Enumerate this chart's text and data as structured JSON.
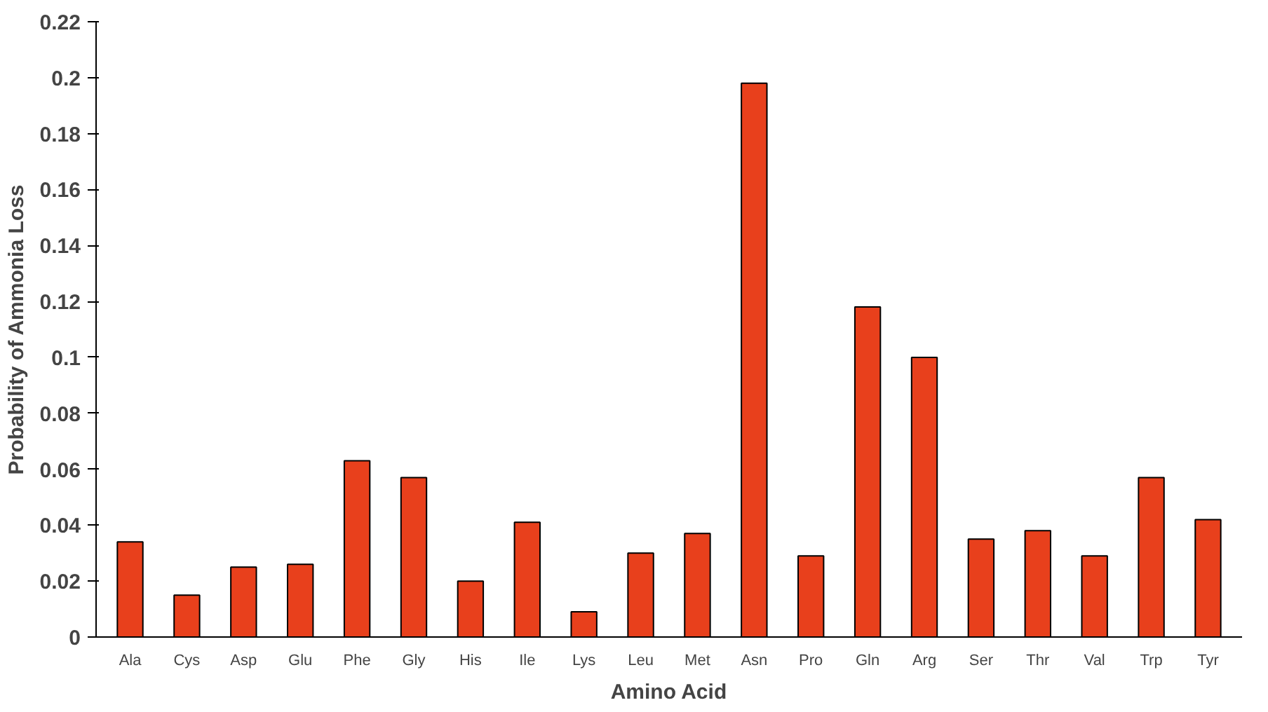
{
  "chart_data": {
    "type": "bar",
    "xlabel": "Amino Acid",
    "ylabel": "Probability of Ammonia Loss",
    "categories": [
      "Ala",
      "Cys",
      "Asp",
      "Glu",
      "Phe",
      "Gly",
      "His",
      "Ile",
      "Lys",
      "Leu",
      "Met",
      "Asn",
      "Pro",
      "Gln",
      "Arg",
      "Ser",
      "Thr",
      "Val",
      "Trp",
      "Tyr"
    ],
    "values": [
      0.034,
      0.015,
      0.025,
      0.026,
      0.063,
      0.057,
      0.02,
      0.041,
      0.009,
      0.03,
      0.037,
      0.198,
      0.029,
      0.118,
      0.1,
      0.035,
      0.038,
      0.029,
      0.057,
      0.042
    ],
    "color": "#e8401c",
    "ylim": [
      0,
      0.22
    ],
    "yticks": [
      0,
      0.02,
      0.04,
      0.06,
      0.08,
      0.1,
      0.12,
      0.14,
      0.16,
      0.18,
      0.2,
      0.22
    ],
    "grid": false
  }
}
